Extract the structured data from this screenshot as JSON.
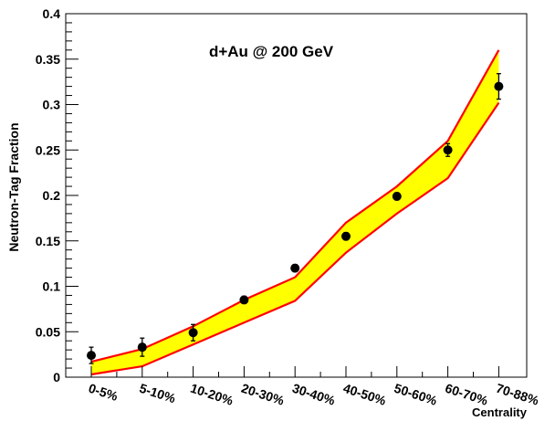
{
  "chart_data": {
    "type": "scatter",
    "title": "d+Au @ 200 GeV",
    "xlabel": "Centrality",
    "ylabel": "Neutron-Tag Fraction",
    "categories": [
      "0-5%",
      "5-10%",
      "10-20%",
      "20-30%",
      "30-40%",
      "40-50%",
      "50-60%",
      "60-70%",
      "70-88%"
    ],
    "yticks": [
      "0",
      "0.05",
      "0.1",
      "0.15",
      "0.2",
      "0.25",
      "0.3",
      "0.35",
      "0.4"
    ],
    "ylim": [
      0,
      0.4
    ],
    "grid": false,
    "points": {
      "values": [
        0.024,
        0.033,
        0.049,
        0.085,
        0.12,
        0.155,
        0.199,
        0.25,
        0.32
      ],
      "errors": [
        0.009,
        0.01,
        0.009,
        0.004,
        0.004,
        0.004,
        0.004,
        0.007,
        0.014
      ]
    },
    "band": {
      "upper": [
        0.017,
        0.031,
        0.056,
        0.085,
        0.11,
        0.17,
        0.21,
        0.26,
        0.36
      ],
      "lower": [
        0.003,
        0.012,
        0.036,
        0.06,
        0.084,
        0.137,
        0.18,
        0.219,
        0.302
      ]
    },
    "colors": {
      "band_fill": "#ffff00",
      "band_edge": "#ff0000",
      "points": "#000000",
      "axes": "#000000"
    }
  }
}
